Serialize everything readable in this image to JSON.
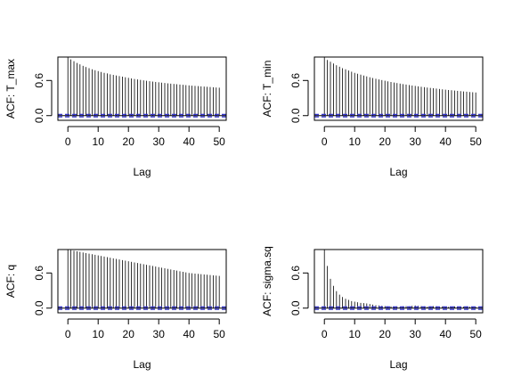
{
  "chart_data": [
    {
      "type": "bar",
      "ylabel": "ACF: T_max",
      "xlabel": "Lag",
      "xticks": [
        0,
        10,
        20,
        30,
        40,
        50
      ],
      "yticks": [
        "0.0",
        "0.6"
      ],
      "xlim": [
        -3.3,
        52.3
      ],
      "ylim": [
        -0.08,
        1.0
      ],
      "confidence_band": 0.02,
      "lags": [
        0,
        1,
        2,
        3,
        4,
        5,
        6,
        7,
        8,
        9,
        10,
        11,
        12,
        13,
        14,
        15,
        16,
        17,
        18,
        19,
        20,
        21,
        22,
        23,
        24,
        25,
        26,
        27,
        28,
        29,
        30,
        31,
        32,
        33,
        34,
        35,
        36,
        37,
        38,
        39,
        40,
        41,
        42,
        43,
        44,
        45,
        46,
        47,
        48,
        49,
        50
      ],
      "values": [
        1.0,
        0.96,
        0.93,
        0.9,
        0.875,
        0.85,
        0.83,
        0.81,
        0.79,
        0.775,
        0.76,
        0.745,
        0.73,
        0.72,
        0.705,
        0.695,
        0.685,
        0.675,
        0.665,
        0.655,
        0.645,
        0.635,
        0.625,
        0.617,
        0.61,
        0.602,
        0.595,
        0.588,
        0.581,
        0.575,
        0.569,
        0.563,
        0.557,
        0.551,
        0.546,
        0.541,
        0.536,
        0.531,
        0.526,
        0.521,
        0.516,
        0.512,
        0.508,
        0.504,
        0.5,
        0.496,
        0.492,
        0.488,
        0.484,
        0.48,
        0.477
      ]
    },
    {
      "type": "bar",
      "ylabel": "ACF: T_min",
      "xlabel": "Lag",
      "xticks": [
        0,
        10,
        20,
        30,
        40,
        50
      ],
      "yticks": [
        "0.0",
        "0.6"
      ],
      "xlim": [
        -3.3,
        52.3
      ],
      "ylim": [
        -0.08,
        1.0
      ],
      "confidence_band": 0.02,
      "lags": [
        0,
        1,
        2,
        3,
        4,
        5,
        6,
        7,
        8,
        9,
        10,
        11,
        12,
        13,
        14,
        15,
        16,
        17,
        18,
        19,
        20,
        21,
        22,
        23,
        24,
        25,
        26,
        27,
        28,
        29,
        30,
        31,
        32,
        33,
        34,
        35,
        36,
        37,
        38,
        39,
        40,
        41,
        42,
        43,
        44,
        45,
        46,
        47,
        48,
        49,
        50
      ],
      "values": [
        1.0,
        0.95,
        0.92,
        0.89,
        0.86,
        0.835,
        0.81,
        0.79,
        0.77,
        0.75,
        0.73,
        0.715,
        0.7,
        0.685,
        0.67,
        0.655,
        0.642,
        0.63,
        0.618,
        0.607,
        0.596,
        0.585,
        0.575,
        0.565,
        0.556,
        0.547,
        0.538,
        0.53,
        0.522,
        0.514,
        0.507,
        0.5,
        0.493,
        0.486,
        0.479,
        0.473,
        0.467,
        0.461,
        0.455,
        0.449,
        0.443,
        0.438,
        0.433,
        0.428,
        0.423,
        0.418,
        0.413,
        0.408,
        0.403,
        0.399,
        0.395
      ]
    },
    {
      "type": "bar",
      "ylabel": "ACF: q",
      "xlabel": "Lag",
      "xticks": [
        0,
        10,
        20,
        30,
        40,
        50
      ],
      "yticks": [
        "0.0",
        "0.6"
      ],
      "xlim": [
        -3.3,
        52.3
      ],
      "ylim": [
        -0.08,
        1.0
      ],
      "confidence_band": 0.02,
      "lags": [
        0,
        1,
        2,
        3,
        4,
        5,
        6,
        7,
        8,
        9,
        10,
        11,
        12,
        13,
        14,
        15,
        16,
        17,
        18,
        19,
        20,
        21,
        22,
        23,
        24,
        25,
        26,
        27,
        28,
        29,
        30,
        31,
        32,
        33,
        34,
        35,
        36,
        37,
        38,
        39,
        40,
        41,
        42,
        43,
        44,
        45,
        46,
        47,
        48,
        49,
        50
      ],
      "values": [
        1.0,
        0.99,
        0.98,
        0.97,
        0.96,
        0.95,
        0.94,
        0.93,
        0.92,
        0.91,
        0.9,
        0.89,
        0.88,
        0.87,
        0.86,
        0.85,
        0.84,
        0.83,
        0.82,
        0.81,
        0.8,
        0.79,
        0.78,
        0.77,
        0.76,
        0.75,
        0.74,
        0.73,
        0.72,
        0.71,
        0.7,
        0.69,
        0.68,
        0.67,
        0.66,
        0.65,
        0.64,
        0.63,
        0.62,
        0.61,
        0.6,
        0.595,
        0.59,
        0.585,
        0.58,
        0.575,
        0.57,
        0.565,
        0.56,
        0.555,
        0.55
      ]
    },
    {
      "type": "bar",
      "ylabel": "ACF: sigma.sq",
      "xlabel": "Lag",
      "xticks": [
        0,
        10,
        20,
        30,
        40,
        50
      ],
      "yticks": [
        "0.0",
        "0.6"
      ],
      "xlim": [
        -3.3,
        52.3
      ],
      "ylim": [
        -0.08,
        1.0
      ],
      "confidence_band": 0.02,
      "lags": [
        0,
        1,
        2,
        3,
        4,
        5,
        6,
        7,
        8,
        9,
        10,
        11,
        12,
        13,
        14,
        15,
        16,
        17,
        18,
        19,
        20,
        21,
        22,
        23,
        24,
        25,
        26,
        27,
        28,
        29,
        30,
        31,
        32,
        33,
        34,
        35,
        36,
        37,
        38,
        39,
        40,
        41,
        42,
        43,
        44,
        45,
        46,
        47,
        48,
        49,
        50
      ],
      "values": [
        1.0,
        0.72,
        0.5,
        0.38,
        0.29,
        0.23,
        0.19,
        0.16,
        0.14,
        0.12,
        0.11,
        0.1,
        0.09,
        0.085,
        0.08,
        0.07,
        0.06,
        0.05,
        0.045,
        0.04,
        0.035,
        0.03,
        0.03,
        0.025,
        0.03,
        0.025,
        0.03,
        0.035,
        0.03,
        0.04,
        0.045,
        0.04,
        0.035,
        0.03,
        0.025,
        0.03,
        0.035,
        0.03,
        0.025,
        0.03,
        0.025,
        0.02,
        0.025,
        0.03,
        0.025,
        0.02,
        0.025,
        0.03,
        0.025,
        0.02,
        0.02
      ]
    }
  ]
}
